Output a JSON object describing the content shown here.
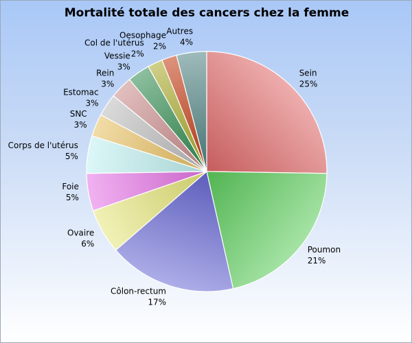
{
  "chart_data": {
    "type": "pie",
    "title": "Mortalité totale des cancers chez la femme",
    "slices": [
      {
        "label": "Sein",
        "value": 25,
        "display": "25%",
        "color": "#e06a6a"
      },
      {
        "label": "Poumon",
        "value": 21,
        "display": "21%",
        "color": "#5ccc5c"
      },
      {
        "label": "Côlon-rectum",
        "value": 17,
        "display": "17%",
        "color": "#6a6ad6"
      },
      {
        "label": "Ovaire",
        "value": 6,
        "display": "6%",
        "color": "#e6e67a"
      },
      {
        "label": "Foie",
        "value": 5,
        "display": "5%",
        "color": "#e673e6"
      },
      {
        "label": "Corps de l'utérus",
        "value": 5,
        "display": "5%",
        "color": "#bff0f0"
      },
      {
        "label": "SNC",
        "value": 3,
        "display": "3%",
        "color": "#e8c060"
      },
      {
        "label": "Estomac",
        "value": 3,
        "display": "3%",
        "color": "#bcbcbc"
      },
      {
        "label": "Rein",
        "value": 3,
        "display": "3%",
        "color": "#c98a8a"
      },
      {
        "label": "Vessie",
        "value": 3,
        "display": "3%",
        "color": "#2f8a4e"
      },
      {
        "label": "Col de l'utérus",
        "value": 2,
        "display": "2%",
        "color": "#a8a828"
      },
      {
        "label": "Oesophage",
        "value": 2,
        "display": "2%",
        "color": "#c23a12"
      },
      {
        "label": "Autres",
        "value": 4,
        "display": "4%",
        "color": "#4f8282"
      }
    ],
    "start_angle_deg": 0,
    "direction": "clockwise",
    "legend": "none"
  }
}
